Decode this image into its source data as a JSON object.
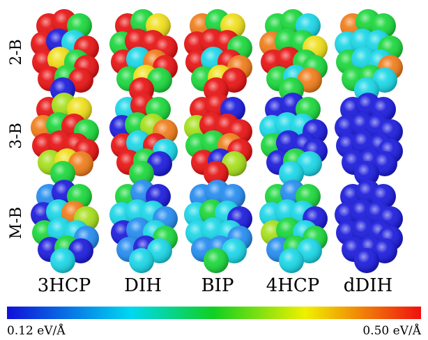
{
  "rows": [
    "2-B",
    "3-B",
    "M-B"
  ],
  "columns": [
    "3HCP",
    "DIH",
    "BIP",
    "4HCP",
    "dDIH"
  ],
  "colorbar": {
    "min_label": "0.12 eV/Å",
    "max_label": "0.50 eV/Å"
  }
}
